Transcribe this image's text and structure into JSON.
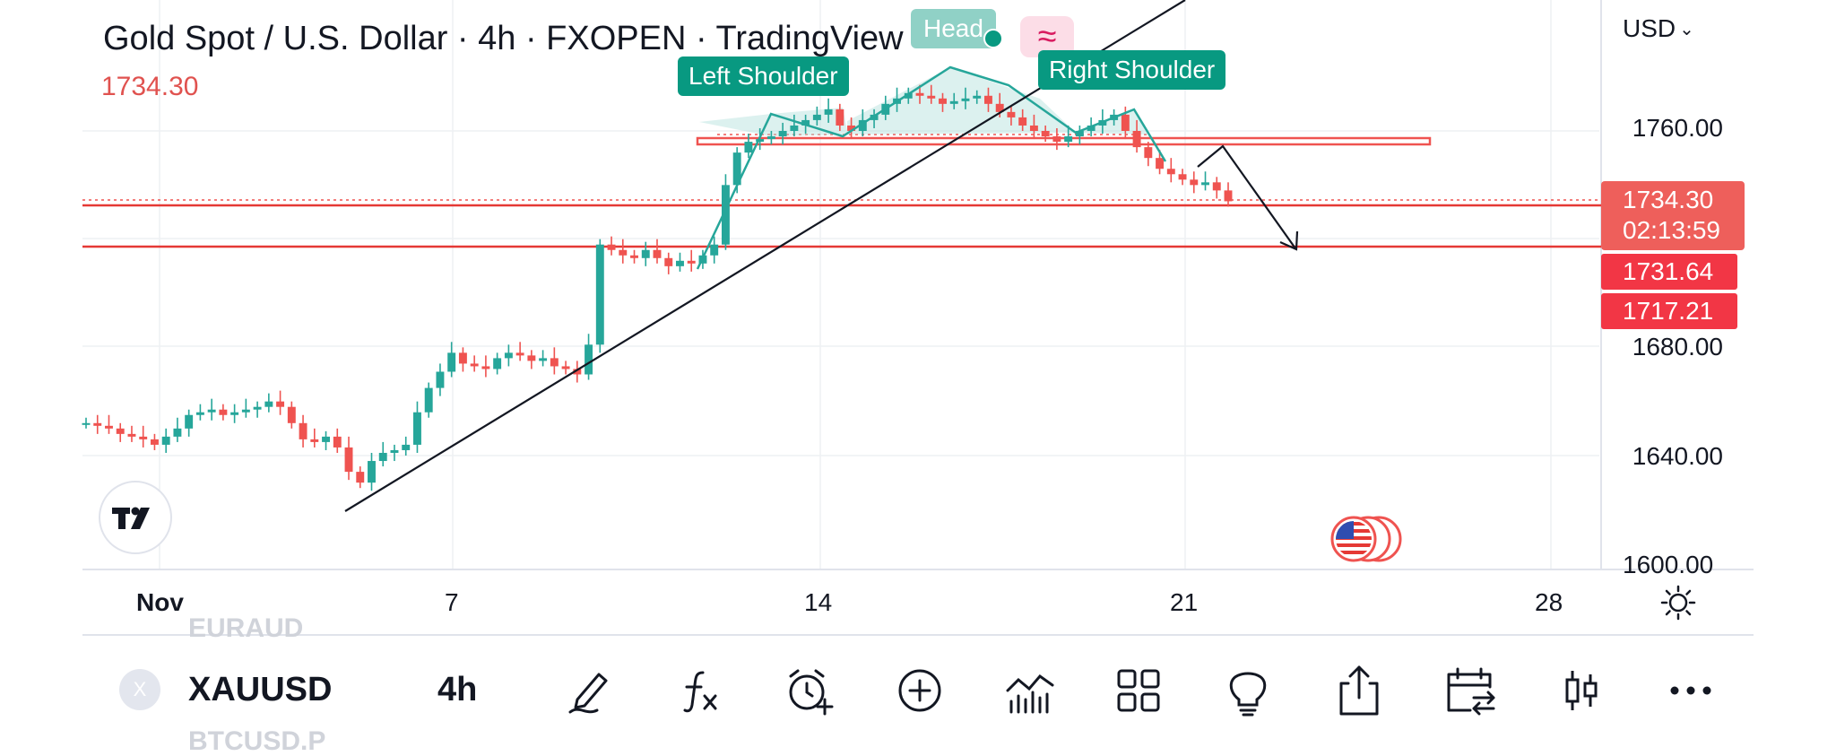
{
  "header": {
    "title": "Gold Spot / U.S. Dollar · 4h · FXOPEN · TradingView",
    "last_price": "1734.30",
    "currency": "USD"
  },
  "price_axis": {
    "labels": [
      "1760.00",
      "1680.00",
      "1640.00",
      "1600.00"
    ],
    "current_price": "1734.30",
    "countdown": "02:13:59",
    "level_1": "1731.64",
    "level_2": "1717.21"
  },
  "time_axis": {
    "labels": [
      "Nov",
      "7",
      "14",
      "21",
      "28"
    ]
  },
  "pattern": {
    "left_shoulder": "Left Shoulder",
    "head": "Head",
    "right_shoulder": "Right Shoulder"
  },
  "bottom_bar": {
    "symbol": "XAUUSD",
    "symbol_initial": "X",
    "interval": "4h",
    "ghost_above": "EURAUD",
    "ghost_below": "BTCUSD.P"
  },
  "colors": {
    "up": "#26a69a",
    "down": "#ef5350",
    "pattern_fill": "#b2dfdb",
    "pattern_label": "#089981",
    "level_line": "#e53935"
  },
  "icons": [
    "tradingview-logo-icon",
    "us-flag-icon",
    "settings-sun-icon",
    "draw-pen-icon",
    "indicator-fx-icon",
    "alert-clock-icon",
    "add-plus-icon",
    "chart-bars-icon",
    "layout-grid-icon",
    "idea-bulb-icon",
    "share-icon",
    "date-range-icon",
    "chart-type-candle-icon",
    "more-icon"
  ]
}
